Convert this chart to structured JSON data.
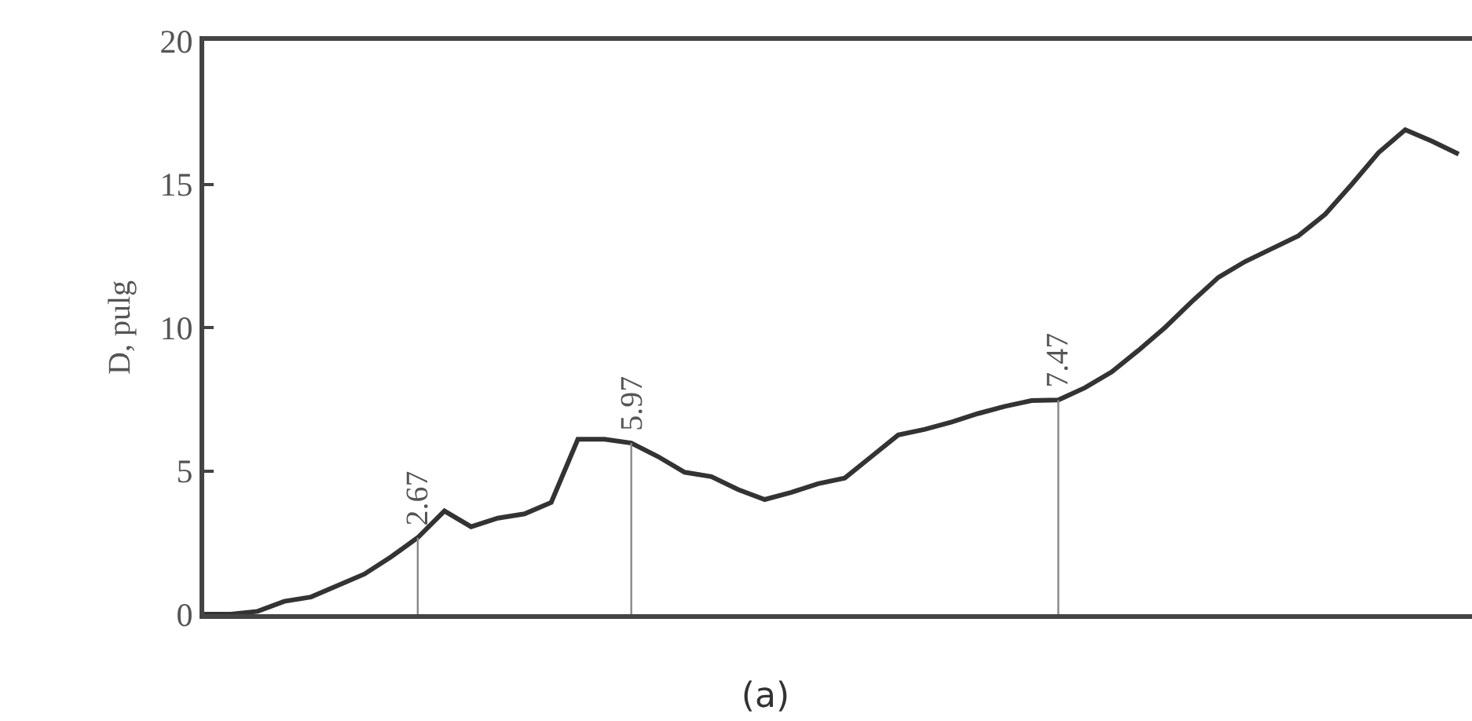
{
  "chart_data": {
    "type": "line",
    "title": "(a)",
    "ylabel": "D, pulg",
    "categories": [
      null,
      null,
      null,
      null,
      null,
      null,
      null,
      null,
      null,
      null,
      null,
      null,
      null,
      null,
      null,
      null,
      null,
      null,
      null,
      null,
      null,
      null,
      null,
      null,
      null,
      null,
      null,
      null,
      null,
      null,
      null,
      null,
      null,
      null,
      null,
      null,
      null,
      null,
      null,
      null,
      null,
      null,
      null,
      null,
      null,
      null,
      null,
      null
    ],
    "series": [
      {
        "color": "#333333",
        "values": [
          0,
          0,
          0.1,
          0.45,
          0.6,
          1.0,
          1.4,
          2.0,
          2.67,
          3.6,
          3.05,
          3.35,
          3.5,
          3.9,
          6.1,
          6.1,
          5.97,
          5.5,
          4.95,
          4.8,
          4.35,
          4.0,
          4.25,
          4.55,
          4.75,
          5.5,
          6.25,
          6.45,
          6.7,
          7.0,
          7.25,
          7.45,
          7.47,
          7.9,
          8.45,
          9.2,
          10.0,
          10.9,
          11.75,
          12.3,
          12.75,
          13.2,
          13.95,
          15.0,
          16.1,
          16.9,
          16.5,
          16.05
        ]
      }
    ],
    "annotations": [
      {
        "text": "2.67",
        "y": 2.67
      },
      {
        "text": "5.97",
        "y": 5.97
      },
      {
        "text": "7.47",
        "y": 7.47
      }
    ],
    "ylim": [
      0,
      20
    ],
    "yticks": [
      0,
      5,
      10,
      15,
      20
    ],
    "grid": false,
    "legend": false,
    "marker": "none",
    "line_style": "solid"
  }
}
